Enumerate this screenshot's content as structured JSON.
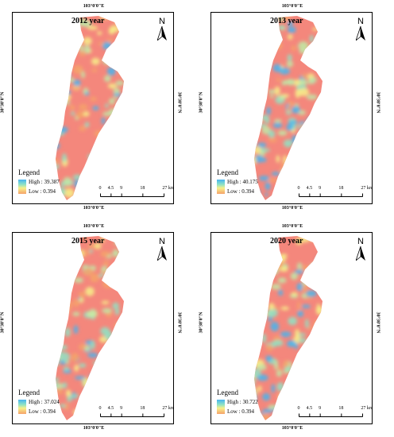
{
  "coords": {
    "longitude": "103°0'0\"E",
    "latitude": "30°30'0\"N"
  },
  "north_label": "N",
  "legend_title": "Legend",
  "scale": {
    "ticks": [
      "0",
      "4.5",
      "9",
      "18",
      "27"
    ],
    "unit": "km"
  },
  "colors": {
    "high": "#46b4f0",
    "mid": "#f7f08a",
    "low": "#f6a26a",
    "background_low": "#f4877c"
  },
  "panels": [
    {
      "year": "2012 year",
      "high": "High : 39.387",
      "low": "Low : 0.394"
    },
    {
      "year": "2013 year",
      "high": "High : 40.175",
      "low": "Low : 0.394"
    },
    {
      "year": "2015 year",
      "high": "High : 37.024",
      "low": "Low : 0.394"
    },
    {
      "year": "2020 year",
      "high": "High : 30.722",
      "low": "Low : 0.394"
    }
  ]
}
